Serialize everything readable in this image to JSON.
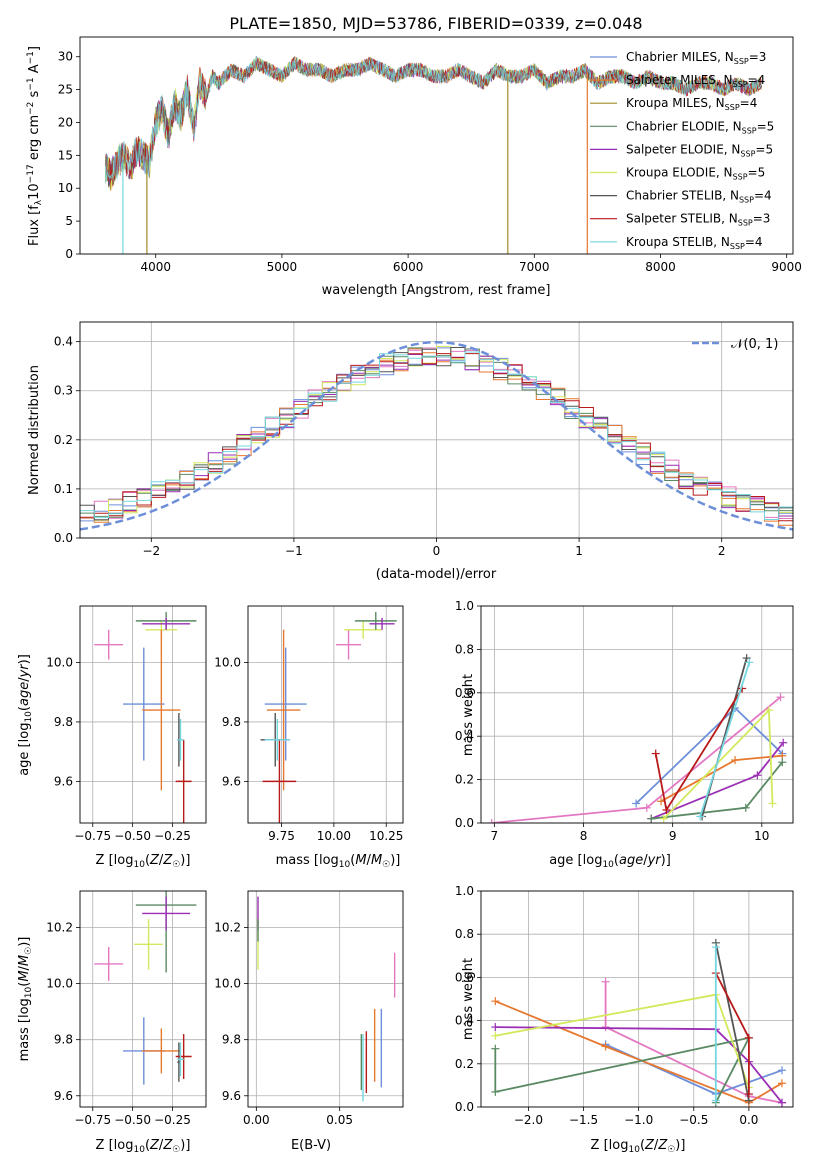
{
  "chart_data": [
    {
      "type": "line",
      "title": "PLATE=1850, MJD=53786, FIBERID=0339, z=0.048",
      "xlabel": "wavelength [Angstrom, rest frame]",
      "ylabel_main": "Flux [f",
      "ylabel_units": "10",
      "xlim": [
        3400,
        9050
      ],
      "ylim": [
        0,
        33
      ],
      "xticks": [
        4000,
        5000,
        6000,
        7000,
        8000,
        9000
      ],
      "yticks": [
        0,
        5,
        10,
        15,
        20,
        25,
        30
      ],
      "grid": false,
      "legend_position": "top-right",
      "series": [
        {
          "name": "Chabrier MILES, N",
          "nssp": "=3",
          "color": "#6d8fd9"
        },
        {
          "name": "Salpeter MILES, N",
          "nssp": "=4",
          "color": "#e6782f"
        },
        {
          "name": "Kroupa MILES, N",
          "nssp": "=4",
          "color": "#a38a2a"
        },
        {
          "name": "Chabrier ELODIE, N",
          "nssp": "=5",
          "color": "#5a8a63"
        },
        {
          "name": "Salpeter ELODIE, N",
          "nssp": "=5",
          "color": "#9a2fb5"
        },
        {
          "name": "Kroupa ELODIE, N",
          "nssp": "=5",
          "color": "#d4e85c"
        },
        {
          "name": "Chabrier STELIB, N",
          "nssp": "=4",
          "color": "#555555"
        },
        {
          "name": "Salpeter STELIB, N",
          "nssp": "=3",
          "color": "#b81919"
        },
        {
          "name": "Kroupa STELIB, N",
          "nssp": "=4",
          "color": "#74d7e0"
        }
      ],
      "spectrum_x": [
        3600,
        3650,
        3700,
        3750,
        3800,
        3850,
        3900,
        3950,
        4000,
        4050,
        4100,
        4150,
        4200,
        4250,
        4300,
        4350,
        4400,
        4450,
        4500,
        4600,
        4700,
        4800,
        4900,
        5000,
        5100,
        5200,
        5300,
        5400,
        5500,
        5600,
        5700,
        5800,
        5900,
        6000,
        6100,
        6200,
        6300,
        6400,
        6500,
        6600,
        6700,
        6800,
        6900,
        7000,
        7100,
        7200,
        7300,
        7400,
        7500,
        7600,
        7700,
        7800,
        7900,
        8000,
        8100,
        8200,
        8300,
        8400,
        8500,
        8600,
        8700,
        8800
      ],
      "spectrum_y": [
        13,
        12,
        14,
        15,
        13,
        16,
        15,
        14,
        20,
        22,
        18,
        23,
        21,
        25,
        19,
        26,
        24,
        27,
        26,
        28,
        27,
        29,
        28,
        27,
        29,
        28,
        28,
        27,
        28,
        28,
        29,
        28,
        27,
        28,
        28,
        27,
        27,
        28,
        27,
        26,
        28,
        27,
        27,
        28,
        26,
        27,
        27,
        28,
        26,
        27,
        27,
        26,
        27,
        26,
        26,
        25,
        26,
        26,
        25,
        26,
        25,
        26
      ],
      "drop_lines": [
        {
          "x": 3740,
          "y": 0,
          "color": "#74d7e0"
        },
        {
          "x": 3930,
          "y": 0,
          "color": "#a38a2a"
        },
        {
          "x": 6790,
          "y": 0,
          "color": "#a38a2a"
        },
        {
          "x": 7420,
          "y": 0,
          "color": "#e6782f"
        }
      ]
    },
    {
      "type": "line",
      "xlabel": "(data-model)/error",
      "ylabel": "Normed distribution",
      "xlim": [
        -2.5,
        2.5
      ],
      "ylim": [
        0,
        0.44
      ],
      "xticks": [
        -2,
        -1,
        0,
        1,
        2
      ],
      "yticks": [
        0.0,
        0.1,
        0.2,
        0.3,
        0.4
      ],
      "grid": true,
      "legend_position": "top-right",
      "legend_label": "𝒩(0, 1)",
      "gaussian": {
        "mean": 0,
        "sigma": 1,
        "color": "#6d8fd9"
      },
      "hist_bin_width": 0.1
    },
    {
      "type": "scatter",
      "xlabel": "Z [log10(Z/Z☉)]",
      "ylabel": "age  [log10(age/yr)]",
      "xlim": [
        -0.83,
        -0.04
      ],
      "ylim": [
        9.46,
        10.19
      ],
      "xticks": [
        -0.75,
        -0.5,
        -0.25
      ],
      "yticks": [
        9.6,
        9.8,
        10.0
      ],
      "grid": true,
      "points": [
        {
          "x": -0.65,
          "xerr": 0.09,
          "y": 10.06,
          "yerr": 0.05,
          "color": "#e377c2"
        },
        {
          "x": -0.32,
          "xerr": 0.1,
          "y": 10.11,
          "yerr": 0.03,
          "color": "#d4e85c"
        },
        {
          "x": -0.29,
          "xerr": 0.19,
          "y": 10.14,
          "yerr": 0.03,
          "color": "#5a8a63"
        },
        {
          "x": -0.29,
          "xerr": 0.15,
          "y": 10.13,
          "yerr": 0.02,
          "color": "#9a2fb5"
        },
        {
          "x": -0.43,
          "xerr": 0.13,
          "y": 9.86,
          "yerr": 0.19,
          "color": "#6d8fd9"
        },
        {
          "x": -0.32,
          "xerr": 0.12,
          "y": 9.84,
          "yerr": 0.27,
          "color": "#e6782f"
        },
        {
          "x": -0.21,
          "xerr": 0.01,
          "y": 9.74,
          "yerr": 0.09,
          "color": "#555555"
        },
        {
          "x": -0.18,
          "xerr": 0.05,
          "y": 9.6,
          "yerr": 0.14,
          "color": "#b81919"
        },
        {
          "x": -0.2,
          "xerr": 0.02,
          "y": 9.74,
          "yerr": 0.07,
          "color": "#74d7e0"
        }
      ]
    },
    {
      "type": "scatter",
      "xlabel": "mass [log10(M/M☉)]",
      "xlim": [
        9.59,
        10.33
      ],
      "ylim": [
        9.46,
        10.19
      ],
      "xticks": [
        9.75,
        10.0,
        10.25
      ],
      "yticks": [
        9.6,
        9.8,
        10.0
      ],
      "grid": true,
      "points": [
        {
          "x": 10.07,
          "xerr": 0.06,
          "y": 10.06,
          "yerr": 0.05,
          "color": "#e377c2"
        },
        {
          "x": 10.14,
          "xerr": 0.09,
          "y": 10.11,
          "yerr": 0.03,
          "color": "#d4e85c"
        },
        {
          "x": 10.2,
          "xerr": 0.1,
          "y": 10.14,
          "yerr": 0.03,
          "color": "#5a8a63"
        },
        {
          "x": 10.23,
          "xerr": 0.06,
          "y": 10.13,
          "yerr": 0.02,
          "color": "#9a2fb5"
        },
        {
          "x": 9.77,
          "xerr": 0.1,
          "y": 9.86,
          "yerr": 0.19,
          "color": "#6d8fd9"
        },
        {
          "x": 9.76,
          "xerr": 0.08,
          "y": 9.84,
          "yerr": 0.27,
          "color": "#e6782f"
        },
        {
          "x": 9.72,
          "xerr": 0.07,
          "y": 9.74,
          "yerr": 0.09,
          "color": "#555555"
        },
        {
          "x": 9.74,
          "xerr": 0.08,
          "y": 9.6,
          "yerr": 0.14,
          "color": "#b81919"
        },
        {
          "x": 9.73,
          "xerr": 0.06,
          "y": 9.74,
          "yerr": 0.07,
          "color": "#74d7e0"
        }
      ]
    },
    {
      "type": "line",
      "xlabel": "age  [log10(age/yr)]",
      "ylabel": "mass weight",
      "xlim": [
        6.85,
        10.35
      ],
      "ylim": [
        0,
        1.0
      ],
      "xticks": [
        7,
        8,
        9,
        10
      ],
      "yticks": [
        0.0,
        0.2,
        0.4,
        0.6,
        0.8,
        1.0
      ],
      "grid": true,
      "series": [
        {
          "color": "#e377c2",
          "x": [
            6.97,
            8.71,
            10.21
          ],
          "y": [
            0.0,
            0.07,
            0.58
          ]
        },
        {
          "color": "#6d8fd9",
          "x": [
            8.59,
            9.7,
            10.23
          ],
          "y": [
            0.09,
            0.53,
            0.32
          ]
        },
        {
          "color": "#e6782f",
          "x": [
            8.87,
            9.7,
            10.23
          ],
          "y": [
            0.1,
            0.29,
            0.31
          ]
        },
        {
          "color": "#9a2fb5",
          "x": [
            8.76,
            9.95,
            10.24
          ],
          "y": [
            0.02,
            0.22,
            0.37
          ]
        },
        {
          "color": "#5a8a63",
          "x": [
            8.76,
            9.82,
            10.23
          ],
          "y": [
            0.02,
            0.07,
            0.28
          ]
        },
        {
          "color": "#d4e85c",
          "x": [
            8.9,
            10.08,
            10.12
          ],
          "y": [
            0.02,
            0.52,
            0.09
          ]
        },
        {
          "color": "#555555",
          "x": [
            9.33,
            9.83
          ],
          "y": [
            0.03,
            0.76
          ]
        },
        {
          "color": "#b81919",
          "x": [
            8.81,
            8.93,
            9.78
          ],
          "y": [
            0.32,
            0.06,
            0.62
          ]
        },
        {
          "color": "#74d7e0",
          "x": [
            9.31,
            9.86
          ],
          "y": [
            0.03,
            0.74
          ]
        }
      ]
    },
    {
      "type": "scatter",
      "xlabel": "Z [log10(Z/Z☉)]",
      "ylabel": "mass [log10(M/M☉)]",
      "xlim": [
        -0.83,
        -0.04
      ],
      "ylim": [
        9.56,
        10.33
      ],
      "xticks": [
        -0.75,
        -0.5,
        -0.25
      ],
      "yticks": [
        9.6,
        9.8,
        10.0,
        10.2
      ],
      "grid": true,
      "points": [
        {
          "x": -0.65,
          "xerr": 0.09,
          "y": 10.07,
          "yerr": 0.06,
          "color": "#e377c2"
        },
        {
          "x": -0.4,
          "xerr": 0.09,
          "y": 10.14,
          "yerr": 0.09,
          "color": "#d4e85c"
        },
        {
          "x": -0.29,
          "xerr": 0.19,
          "y": 10.28,
          "yerr": 0.24,
          "color": "#5a8a63"
        },
        {
          "x": -0.29,
          "xerr": 0.15,
          "y": 10.25,
          "yerr": 0.06,
          "color": "#9a2fb5"
        },
        {
          "x": -0.43,
          "xerr": 0.13,
          "y": 9.76,
          "yerr": 0.12,
          "color": "#6d8fd9"
        },
        {
          "x": -0.32,
          "xerr": 0.12,
          "y": 9.76,
          "yerr": 0.08,
          "color": "#e6782f"
        },
        {
          "x": -0.21,
          "xerr": 0.01,
          "y": 9.72,
          "yerr": 0.07,
          "color": "#555555"
        },
        {
          "x": -0.18,
          "xerr": 0.05,
          "y": 9.74,
          "yerr": 0.08,
          "color": "#b81919"
        },
        {
          "x": -0.2,
          "xerr": 0.02,
          "y": 9.73,
          "yerr": 0.06,
          "color": "#74d7e0"
        }
      ]
    },
    {
      "type": "scatter",
      "xlabel": "E(B-V)",
      "xlim": [
        -0.005,
        0.088
      ],
      "ylim": [
        9.56,
        10.33
      ],
      "xticks": [
        0.0,
        0.05
      ],
      "yticks": [
        9.6,
        9.8,
        10.0,
        10.2
      ],
      "grid": true,
      "points": [
        {
          "x": 0.083,
          "y": 10.03,
          "yerr": 0.08,
          "color": "#e377c2"
        },
        {
          "x": 0.001,
          "y": 10.14,
          "yerr": 0.09,
          "color": "#d4e85c"
        },
        {
          "x": 0.001,
          "y": 10.25,
          "yerr": 0.06,
          "color": "#9a2fb5"
        },
        {
          "x": 0.001,
          "y": 10.19,
          "yerr": 0.04,
          "color": "#5a8a63"
        },
        {
          "x": 0.075,
          "y": 9.77,
          "yerr": 0.14,
          "color": "#6d8fd9"
        },
        {
          "x": 0.071,
          "y": 9.78,
          "yerr": 0.13,
          "color": "#e6782f"
        },
        {
          "x": 0.066,
          "y": 9.72,
          "yerr": 0.11,
          "color": "#b81919"
        },
        {
          "x": 0.064,
          "y": 9.7,
          "yerr": 0.12,
          "color": "#74d7e0"
        },
        {
          "x": 0.063,
          "y": 9.72,
          "yerr": 0.1,
          "color": "#5a8a63"
        }
      ]
    },
    {
      "type": "line",
      "xlabel": "Z [log10(Z/Z☉)]",
      "ylabel": "mass weight",
      "xlim": [
        -2.43,
        0.4
      ],
      "ylim": [
        0,
        1.0
      ],
      "xticks": [
        -2.0,
        -1.5,
        -1.0,
        -0.5,
        0.0
      ],
      "yticks": [
        0.0,
        0.2,
        0.4,
        0.6,
        0.8,
        1.0
      ],
      "grid": true,
      "series": [
        {
          "color": "#e377c2",
          "x": [
            -1.3,
            -1.3,
            0.0,
            0.3
          ],
          "y": [
            0.58,
            0.37,
            0.05,
            0.02
          ]
        },
        {
          "color": "#6d8fd9",
          "x": [
            -1.3,
            -0.3,
            0.3
          ],
          "y": [
            0.29,
            0.06,
            0.17
          ]
        },
        {
          "color": "#e6782f",
          "x": [
            -2.3,
            -1.3,
            0.0,
            0.3
          ],
          "y": [
            0.49,
            0.28,
            0.02,
            0.11
          ]
        },
        {
          "color": "#9a2fb5",
          "x": [
            -2.3,
            -0.3,
            0.0,
            0.3
          ],
          "y": [
            0.37,
            0.36,
            0.21,
            0.02
          ]
        },
        {
          "color": "#5a8a63",
          "x": [
            -2.3,
            -2.3,
            0.0,
            -0.3
          ],
          "y": [
            0.27,
            0.07,
            0.32,
            0.02
          ]
        },
        {
          "color": "#d4e85c",
          "x": [
            -2.3,
            -0.3,
            0.0
          ],
          "y": [
            0.33,
            0.52,
            0.09
          ]
        },
        {
          "color": "#555555",
          "x": [
            -0.3,
            0.0
          ],
          "y": [
            0.76,
            0.03
          ]
        },
        {
          "color": "#b81919",
          "x": [
            -0.3,
            0.0,
            0.0
          ],
          "y": [
            0.62,
            0.32,
            0.06
          ]
        },
        {
          "color": "#74d7e0",
          "x": [
            -0.3,
            -0.3
          ],
          "y": [
            0.74,
            0.03
          ]
        }
      ]
    }
  ]
}
